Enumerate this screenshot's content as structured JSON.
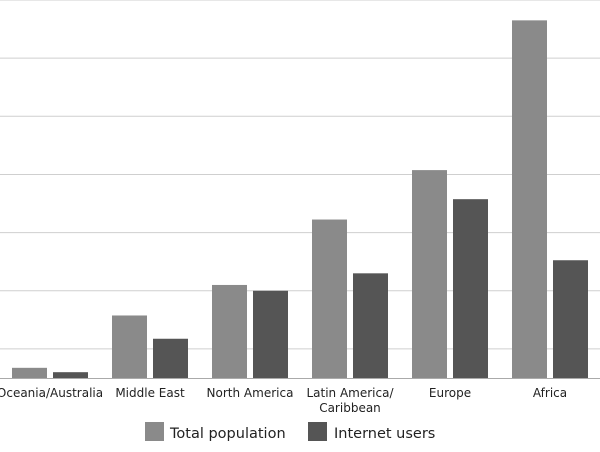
{
  "chart_data": {
    "type": "bar",
    "categories": [
      [
        "Oceania/Australia"
      ],
      [
        "Middle East"
      ],
      [
        "North America"
      ],
      [
        "Latin America/",
        "Caribbean"
      ],
      [
        "Europe"
      ],
      [
        "Africa"
      ]
    ],
    "series": [
      {
        "name": "Total population",
        "color": "#8a8a8a",
        "values": [
          0.7,
          4.3,
          6.4,
          10.9,
          14.3,
          24.6
        ]
      },
      {
        "name": "Internet users",
        "color": "#555555",
        "values": [
          0.4,
          2.7,
          6.0,
          7.2,
          12.3,
          8.1
        ]
      }
    ],
    "ylim": [
      0,
      26
    ],
    "gridlines": [
      2,
      6,
      10,
      14,
      18,
      22,
      26
    ],
    "grid": true,
    "gridline_color": "#cfcfcf",
    "axis_color": "#aaaaaa",
    "legend_position": "bottom-center",
    "title": "",
    "xlabel": "",
    "ylabel": ""
  }
}
